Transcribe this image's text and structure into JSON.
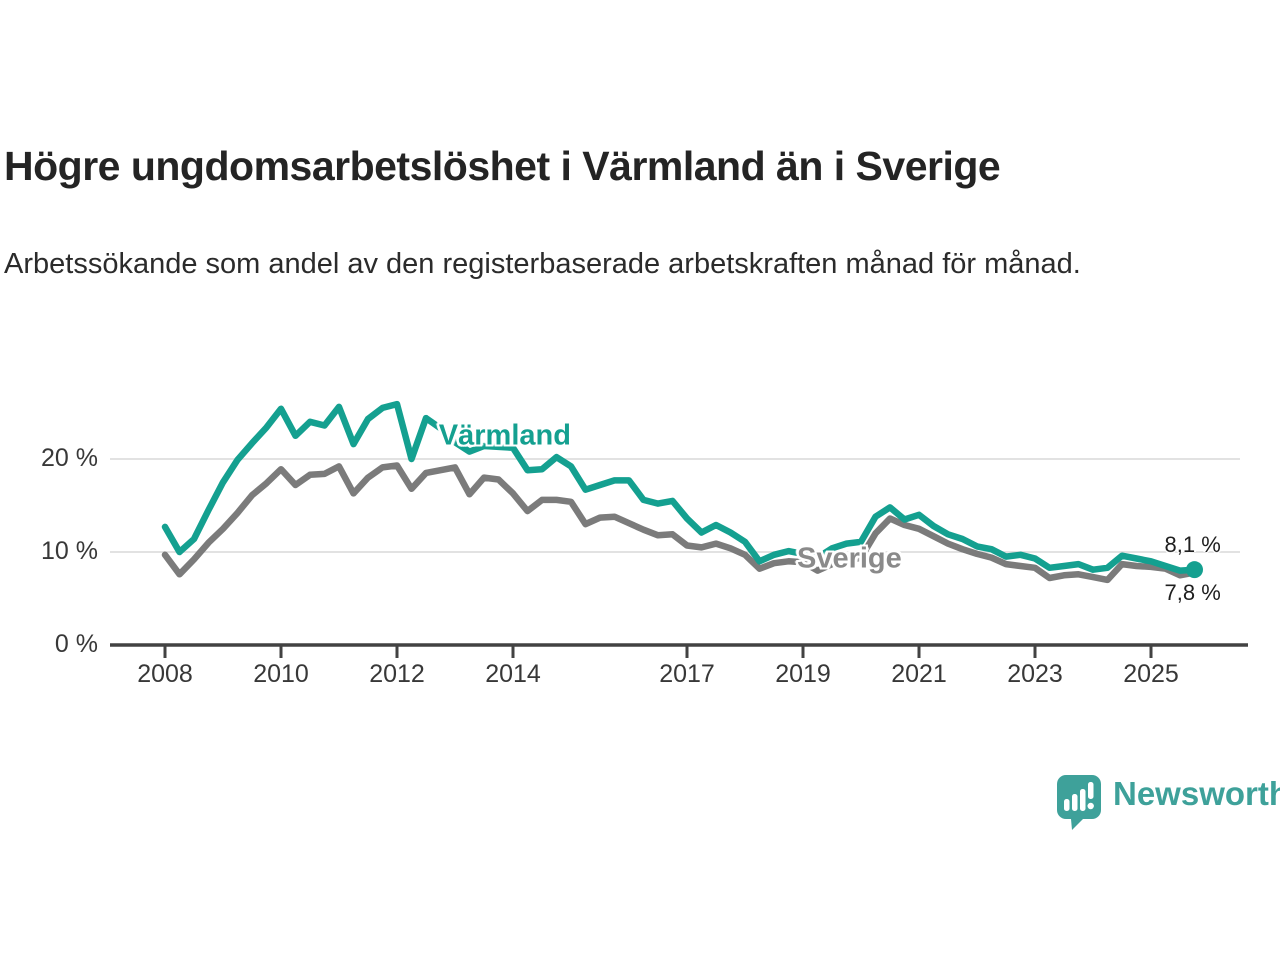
{
  "header": {
    "title": "Högre ungdomsarbetslöshet i Värmland än i Sverige",
    "subtitle": "Arbetssökande som andel av den registerbaserade arbetskraften månad för månad."
  },
  "chart_data": {
    "type": "line",
    "title": "Högre ungdomsarbetslöshet i Värmland än i Sverige",
    "unit": "%",
    "grid": "horizontal",
    "legend_position": "inline-labels",
    "xlim": [
      2007.9,
      2026.6
    ],
    "ylim": [
      0,
      27
    ],
    "x": [
      2008.0,
      2008.25,
      2008.5,
      2008.75,
      2009.0,
      2009.25,
      2009.5,
      2009.75,
      2010.0,
      2010.25,
      2010.5,
      2010.75,
      2011.0,
      2011.25,
      2011.5,
      2011.75,
      2012.0,
      2012.25,
      2012.5,
      2012.75,
      2013.0,
      2013.25,
      2013.5,
      2013.75,
      2014.0,
      2014.25,
      2014.5,
      2014.75,
      2015.0,
      2015.25,
      2015.5,
      2015.75,
      2016.0,
      2016.25,
      2016.5,
      2016.75,
      2017.0,
      2017.25,
      2017.5,
      2017.75,
      2018.0,
      2018.25,
      2018.5,
      2018.75,
      2019.0,
      2019.25,
      2019.5,
      2019.75,
      2020.0,
      2020.25,
      2020.5,
      2020.75,
      2021.0,
      2021.25,
      2021.5,
      2021.75,
      2022.0,
      2022.25,
      2022.5,
      2022.75,
      2023.0,
      2023.25,
      2023.5,
      2023.75,
      2024.0,
      2024.25,
      2024.5,
      2024.75,
      2025.0,
      2025.25,
      2025.5,
      2025.75
    ],
    "series": [
      {
        "name": "Sverige",
        "color": "#7b7b7b",
        "label_color": "#8a8a8a",
        "end_label": "7,8 %",
        "end_value": 7.8,
        "end_dot": false,
        "values": [
          9.7,
          7.6,
          9.2,
          11.0,
          12.5,
          14.2,
          16.1,
          17.4,
          18.9,
          17.2,
          18.3,
          18.4,
          19.2,
          16.3,
          18.0,
          19.1,
          19.3,
          16.8,
          18.5,
          18.8,
          19.1,
          16.2,
          18.0,
          17.8,
          16.3,
          14.4,
          15.6,
          15.6,
          15.4,
          13.0,
          13.7,
          13.8,
          13.1,
          12.4,
          11.8,
          11.9,
          10.7,
          10.5,
          10.9,
          10.4,
          9.7,
          8.2,
          8.8,
          9.0,
          8.9,
          8.0,
          8.7,
          9.0,
          9.4,
          12.0,
          13.6,
          12.9,
          12.5,
          11.7,
          10.9,
          10.3,
          9.8,
          9.4,
          8.7,
          8.5,
          8.3,
          7.2,
          7.5,
          7.6,
          7.3,
          7.0,
          8.7,
          8.5,
          8.4,
          8.2,
          7.5,
          7.8
        ]
      },
      {
        "name": "Värmland",
        "color": "#14a090",
        "label_color": "#14a090",
        "end_label": "8,1 %",
        "end_value": 8.1,
        "end_dot": true,
        "values": [
          12.7,
          10.0,
          11.4,
          14.5,
          17.5,
          19.9,
          21.7,
          23.4,
          25.4,
          22.5,
          24.0,
          23.6,
          25.6,
          21.6,
          24.3,
          25.5,
          25.9,
          20.0,
          24.4,
          23.3,
          21.8,
          20.8,
          21.4,
          21.3,
          21.2,
          18.8,
          18.9,
          20.2,
          19.2,
          16.7,
          17.2,
          17.7,
          17.7,
          15.6,
          15.2,
          15.5,
          13.6,
          12.1,
          12.9,
          12.1,
          11.1,
          9.0,
          9.7,
          10.1,
          9.8,
          9.4,
          10.4,
          10.9,
          11.1,
          13.8,
          14.8,
          13.5,
          14.0,
          12.8,
          11.9,
          11.4,
          10.6,
          10.3,
          9.5,
          9.7,
          9.3,
          8.3,
          8.5,
          8.7,
          8.1,
          8.3,
          9.6,
          9.3,
          9.0,
          8.5,
          8.0,
          8.1
        ]
      }
    ],
    "x_ticks": [
      {
        "value": 2008,
        "label": "2008"
      },
      {
        "value": 2010,
        "label": "2010"
      },
      {
        "value": 2012,
        "label": "2012"
      },
      {
        "value": 2014,
        "label": "2014"
      },
      {
        "value": 2017,
        "label": "2017"
      },
      {
        "value": 2019,
        "label": "2019"
      },
      {
        "value": 2021,
        "label": "2021"
      },
      {
        "value": 2023,
        "label": "2023"
      },
      {
        "value": 2025,
        "label": "2025"
      }
    ],
    "y_ticks": [
      {
        "value": 0,
        "label": "0 %"
      },
      {
        "value": 10,
        "label": "10 %"
      },
      {
        "value": 20,
        "label": "20 %"
      }
    ],
    "annotations": [
      {
        "text": "Värmland",
        "x": 2013.86,
        "y": 22.5,
        "series": "Värmland"
      },
      {
        "text": "Sverige",
        "x": 2019.8,
        "y": 9.3,
        "series": "Sverige"
      }
    ],
    "colors": {
      "grid": "#d8d8d8",
      "axis": "#424242",
      "tick_text": "#383838"
    }
  },
  "footer": {
    "brand": "Newsworthy",
    "brand_color": "#3ea19a"
  }
}
